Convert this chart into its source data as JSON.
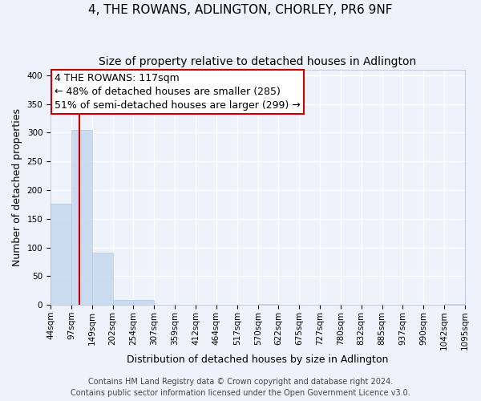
{
  "title": "4, THE ROWANS, ADLINGTON, CHORLEY, PR6 9NF",
  "subtitle": "Size of property relative to detached houses in Adlington",
  "xlabel": "Distribution of detached houses by size in Adlington",
  "ylabel": "Number of detached properties",
  "bin_edges": [
    44,
    97,
    149,
    202,
    254,
    307,
    359,
    412,
    464,
    517,
    570,
    622,
    675,
    727,
    780,
    832,
    885,
    937,
    990,
    1042,
    1095
  ],
  "bin_counts": [
    176,
    305,
    91,
    9,
    8,
    0,
    0,
    0,
    0,
    0,
    2,
    0,
    0,
    0,
    0,
    0,
    0,
    0,
    0,
    2
  ],
  "bar_color": "#c5d8ee",
  "bar_edge_color": "#b0c4de",
  "bar_alpha": 0.85,
  "vline_x": 117,
  "vline_color": "#cc0000",
  "ylim": [
    0,
    410
  ],
  "yticks": [
    0,
    50,
    100,
    150,
    200,
    250,
    300,
    350,
    400
  ],
  "annotation_line1": "4 THE ROWANS: 117sqm",
  "annotation_line2": "← 48% of detached houses are smaller (285)",
  "annotation_line3": "51% of semi-detached houses are larger (299) →",
  "annotation_box_edgecolor": "#cc0000",
  "annotation_box_facecolor": "white",
  "footer_line1": "Contains HM Land Registry data © Crown copyright and database right 2024.",
  "footer_line2": "Contains public sector information licensed under the Open Government Licence v3.0.",
  "background_color": "#eef2fa",
  "grid_color": "white",
  "title_fontsize": 11,
  "subtitle_fontsize": 10,
  "axis_label_fontsize": 9,
  "tick_label_fontsize": 7.5,
  "annotation_fontsize": 9,
  "footer_fontsize": 7
}
